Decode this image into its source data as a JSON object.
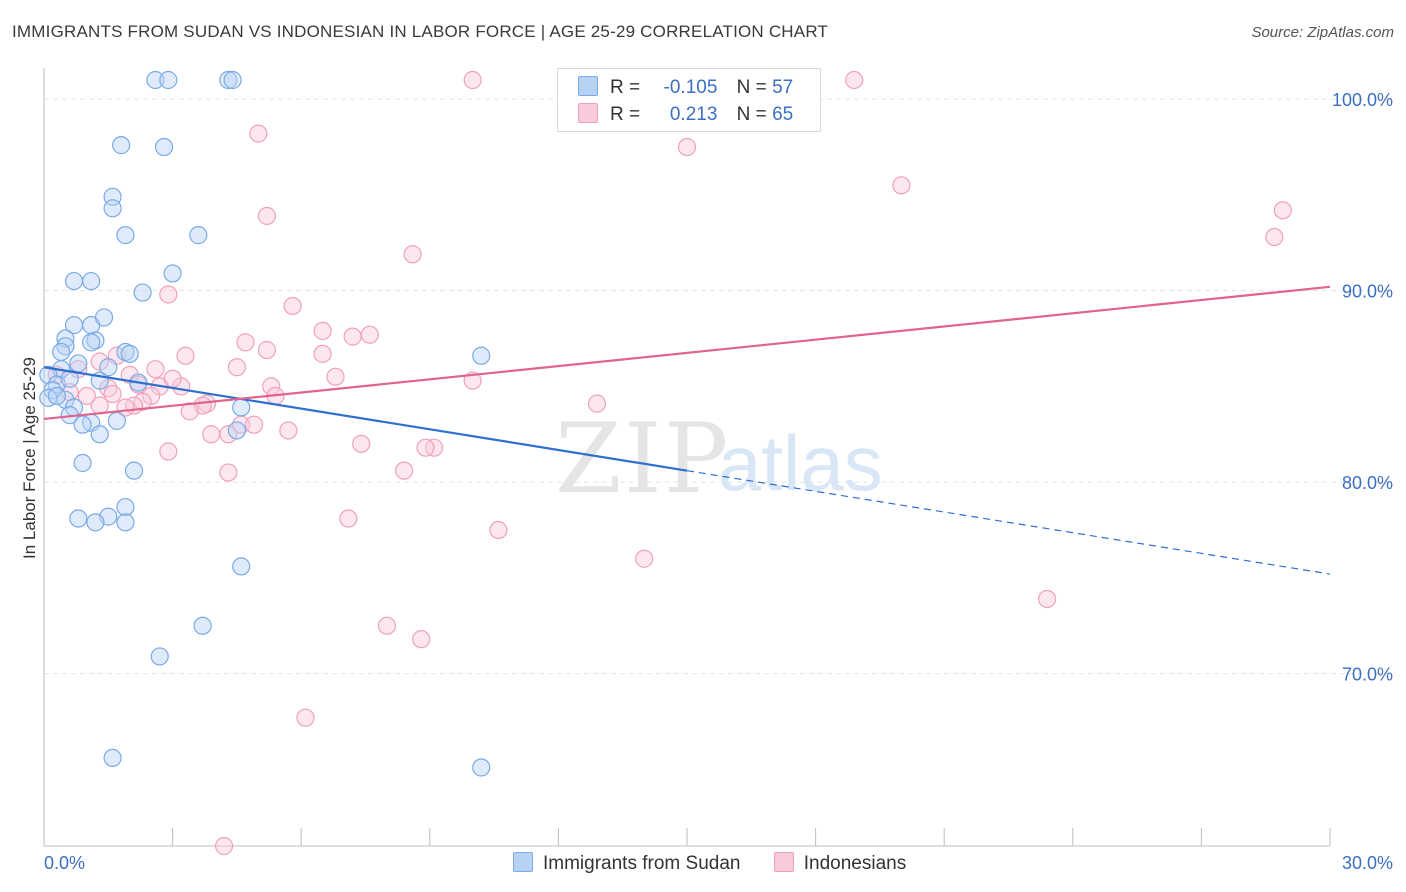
{
  "title": "IMMIGRANTS FROM SUDAN VS INDONESIAN IN LABOR FORCE | AGE 25-29 CORRELATION CHART",
  "source": "Source: ZipAtlas.com",
  "watermark": {
    "zip": "ZIP",
    "atlas": "atlas"
  },
  "legend_stats": [
    {
      "r_label": "R =",
      "r_value": "-0.105",
      "n_label": "N =",
      "n_value": "57"
    },
    {
      "r_label": "R =",
      "r_value": "0.213",
      "n_label": "N =",
      "n_value": "65"
    }
  ],
  "chart_data": {
    "type": "scatter",
    "title": "IMMIGRANTS FROM SUDAN VS INDONESIAN IN LABOR FORCE | AGE 25-29 CORRELATION CHART",
    "xlabel": "",
    "ylabel": "In Labor Force | Age 25-29",
    "xlim": [
      0,
      30
    ],
    "ylim": [
      60,
      100
    ],
    "x_tick_labels": [
      "0.0%",
      "30.0%"
    ],
    "y_ticks": [
      70,
      80,
      90,
      100
    ],
    "y_tick_labels": [
      "70.0%",
      "80.0%",
      "90.0%",
      "100.0%"
    ],
    "grid": true,
    "legend_position": "top-center",
    "colors": {
      "sudan": "#7aaae8",
      "indonesian": "#f0a0bc",
      "sudan_line": "#2e6fd0",
      "indonesian_line": "#e0648e"
    },
    "series": [
      {
        "name": "Immigrants from Sudan",
        "key": "sudan",
        "trend": {
          "x": [
            0,
            15
          ],
          "y": [
            86.0,
            80.6
          ],
          "dashed_to": [
            30,
            75.2
          ]
        },
        "points": [
          [
            2.6,
            101.0
          ],
          [
            2.9,
            101.0
          ],
          [
            4.3,
            101.0
          ],
          [
            4.4,
            101.0
          ],
          [
            1.8,
            97.6
          ],
          [
            2.8,
            97.5
          ],
          [
            1.6,
            94.9
          ],
          [
            1.6,
            94.3
          ],
          [
            1.9,
            92.9
          ],
          [
            3.6,
            92.9
          ],
          [
            0.7,
            90.5
          ],
          [
            1.1,
            90.5
          ],
          [
            3.0,
            90.9
          ],
          [
            2.3,
            89.9
          ],
          [
            0.7,
            88.2
          ],
          [
            1.1,
            88.2
          ],
          [
            1.4,
            88.6
          ],
          [
            0.5,
            87.5
          ],
          [
            0.5,
            87.1
          ],
          [
            1.2,
            87.4
          ],
          [
            1.1,
            87.3
          ],
          [
            1.9,
            86.8
          ],
          [
            0.4,
            86.8
          ],
          [
            2.0,
            86.7
          ],
          [
            0.8,
            86.2
          ],
          [
            0.4,
            85.9
          ],
          [
            0.1,
            85.6
          ],
          [
            0.3,
            85.1
          ],
          [
            0.2,
            84.8
          ],
          [
            0.1,
            84.4
          ],
          [
            0.5,
            84.3
          ],
          [
            1.3,
            85.3
          ],
          [
            2.2,
            85.2
          ],
          [
            0.7,
            83.9
          ],
          [
            0.6,
            83.5
          ],
          [
            1.1,
            83.1
          ],
          [
            1.7,
            83.2
          ],
          [
            4.6,
            83.9
          ],
          [
            4.5,
            82.7
          ],
          [
            1.3,
            82.5
          ],
          [
            0.9,
            83.0
          ],
          [
            0.9,
            81.0
          ],
          [
            2.1,
            80.6
          ],
          [
            1.9,
            78.7
          ],
          [
            0.8,
            78.1
          ],
          [
            1.5,
            78.2
          ],
          [
            1.2,
            77.9
          ],
          [
            1.9,
            77.9
          ],
          [
            4.6,
            75.6
          ],
          [
            3.7,
            72.5
          ],
          [
            2.7,
            70.9
          ],
          [
            10.2,
            86.6
          ],
          [
            1.6,
            65.6
          ],
          [
            10.2,
            65.1
          ],
          [
            0.3,
            84.5
          ],
          [
            0.6,
            85.4
          ],
          [
            1.5,
            86.0
          ]
        ]
      },
      {
        "name": "Indonesians",
        "key": "indonesian",
        "trend": {
          "x": [
            0,
            30
          ],
          "y": [
            83.3,
            90.2
          ]
        },
        "points": [
          [
            10.0,
            101.0
          ],
          [
            18.9,
            101.0
          ],
          [
            5.0,
            98.2
          ],
          [
            15.0,
            97.5
          ],
          [
            20.0,
            95.5
          ],
          [
            28.9,
            94.2
          ],
          [
            28.7,
            92.8
          ],
          [
            5.2,
            93.9
          ],
          [
            8.6,
            91.9
          ],
          [
            2.9,
            89.8
          ],
          [
            5.8,
            89.2
          ],
          [
            7.2,
            87.6
          ],
          [
            6.5,
            87.9
          ],
          [
            7.6,
            87.7
          ],
          [
            4.7,
            87.3
          ],
          [
            3.3,
            86.6
          ],
          [
            5.2,
            86.9
          ],
          [
            6.5,
            86.7
          ],
          [
            1.7,
            86.6
          ],
          [
            4.5,
            86.0
          ],
          [
            6.8,
            85.5
          ],
          [
            2.0,
            85.6
          ],
          [
            3.2,
            85.0
          ],
          [
            2.7,
            85.0
          ],
          [
            10.0,
            85.3
          ],
          [
            5.3,
            85.0
          ],
          [
            1.5,
            84.9
          ],
          [
            0.6,
            84.7
          ],
          [
            1.0,
            84.5
          ],
          [
            2.5,
            84.5
          ],
          [
            2.3,
            84.2
          ],
          [
            3.8,
            84.1
          ],
          [
            3.7,
            84.0
          ],
          [
            2.1,
            84.0
          ],
          [
            1.3,
            84.0
          ],
          [
            1.9,
            83.9
          ],
          [
            12.9,
            84.1
          ],
          [
            3.4,
            83.7
          ],
          [
            4.6,
            83.0
          ],
          [
            4.9,
            83.0
          ],
          [
            3.9,
            82.5
          ],
          [
            4.3,
            82.5
          ],
          [
            5.7,
            82.7
          ],
          [
            7.4,
            82.0
          ],
          [
            9.1,
            81.8
          ],
          [
            8.9,
            81.8
          ],
          [
            2.9,
            81.6
          ],
          [
            4.3,
            80.5
          ],
          [
            8.4,
            80.6
          ],
          [
            7.1,
            78.1
          ],
          [
            10.6,
            77.5
          ],
          [
            14.0,
            76.0
          ],
          [
            23.4,
            73.9
          ],
          [
            8.0,
            72.5
          ],
          [
            8.8,
            71.8
          ],
          [
            6.1,
            67.7
          ],
          [
            4.2,
            61.0
          ],
          [
            1.3,
            86.3
          ],
          [
            2.2,
            85.1
          ],
          [
            0.3,
            85.6
          ],
          [
            1.6,
            84.6
          ],
          [
            5.4,
            84.5
          ],
          [
            0.8,
            85.9
          ],
          [
            2.6,
            85.9
          ],
          [
            3.0,
            85.4
          ]
        ]
      }
    ]
  },
  "bottom_legend": [
    {
      "label": "Immigrants from Sudan",
      "color": "#b8d2f4",
      "border": "#7aaae8"
    },
    {
      "label": "Indonesians",
      "color": "#f9cadb",
      "border": "#f0a0bc"
    }
  ]
}
